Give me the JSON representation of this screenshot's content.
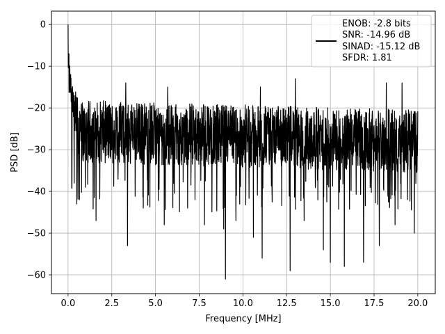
{
  "chart_data": {
    "type": "line",
    "title": "",
    "xlabel": "Frequency [MHz]",
    "ylabel": "PSD [dB]",
    "xlim": [
      -0.95,
      21.0
    ],
    "ylim": [
      -64.5,
      3.2
    ],
    "xticks": [
      0.0,
      2.5,
      5.0,
      7.5,
      10.0,
      12.5,
      15.0,
      17.5,
      20.0
    ],
    "xtick_labels": [
      "0.0",
      "2.5",
      "5.0",
      "7.5",
      "10.0",
      "12.5",
      "15.0",
      "17.5",
      "20.0"
    ],
    "yticks": [
      0,
      -10,
      -20,
      -30,
      -40,
      -50,
      -60
    ],
    "ytick_labels": [
      "0",
      "−10",
      "−20",
      "−30",
      "−40",
      "−50",
      "−60"
    ],
    "grid": true,
    "legend_position": "top-right",
    "series": [
      {
        "color": "#000000",
        "legend_lines": [
          "ENOB: -2.8 bits",
          "SNR: -14.96 dB",
          "SINAD: -15.12 dB",
          "SFDR: 1.81"
        ],
        "x_range": [
          0.0,
          20.0
        ],
        "noise_band": [
          -33,
          -18
        ],
        "dips": [
          {
            "x": 0.35,
            "y": -38
          },
          {
            "x": 0.5,
            "y": -43
          },
          {
            "x": 0.65,
            "y": -42
          },
          {
            "x": 1.6,
            "y": -47
          },
          {
            "x": 3.4,
            "y": -53
          },
          {
            "x": 4.3,
            "y": -44
          },
          {
            "x": 5.5,
            "y": -48
          },
          {
            "x": 7.8,
            "y": -48
          },
          {
            "x": 8.9,
            "y": -49
          },
          {
            "x": 9.0,
            "y": -61
          },
          {
            "x": 9.6,
            "y": -47
          },
          {
            "x": 10.6,
            "y": -51
          },
          {
            "x": 11.1,
            "y": -56
          },
          {
            "x": 12.7,
            "y": -59
          },
          {
            "x": 13.5,
            "y": -47
          },
          {
            "x": 14.6,
            "y": -54
          },
          {
            "x": 15.0,
            "y": -57
          },
          {
            "x": 15.8,
            "y": -58
          },
          {
            "x": 16.9,
            "y": -57
          },
          {
            "x": 17.8,
            "y": -53
          },
          {
            "x": 18.7,
            "y": -48
          },
          {
            "x": 19.8,
            "y": -50
          }
        ],
        "peaks": [
          {
            "x": 0.0,
            "y": 0
          },
          {
            "x": 0.05,
            "y": -7
          },
          {
            "x": 0.1,
            "y": -10
          },
          {
            "x": 0.15,
            "y": -12
          },
          {
            "x": 3.3,
            "y": -14
          },
          {
            "x": 5.7,
            "y": -15
          },
          {
            "x": 11.0,
            "y": -15
          },
          {
            "x": 13.0,
            "y": -13
          },
          {
            "x": 18.2,
            "y": -14
          },
          {
            "x": 19.1,
            "y": -14
          }
        ]
      }
    ]
  }
}
